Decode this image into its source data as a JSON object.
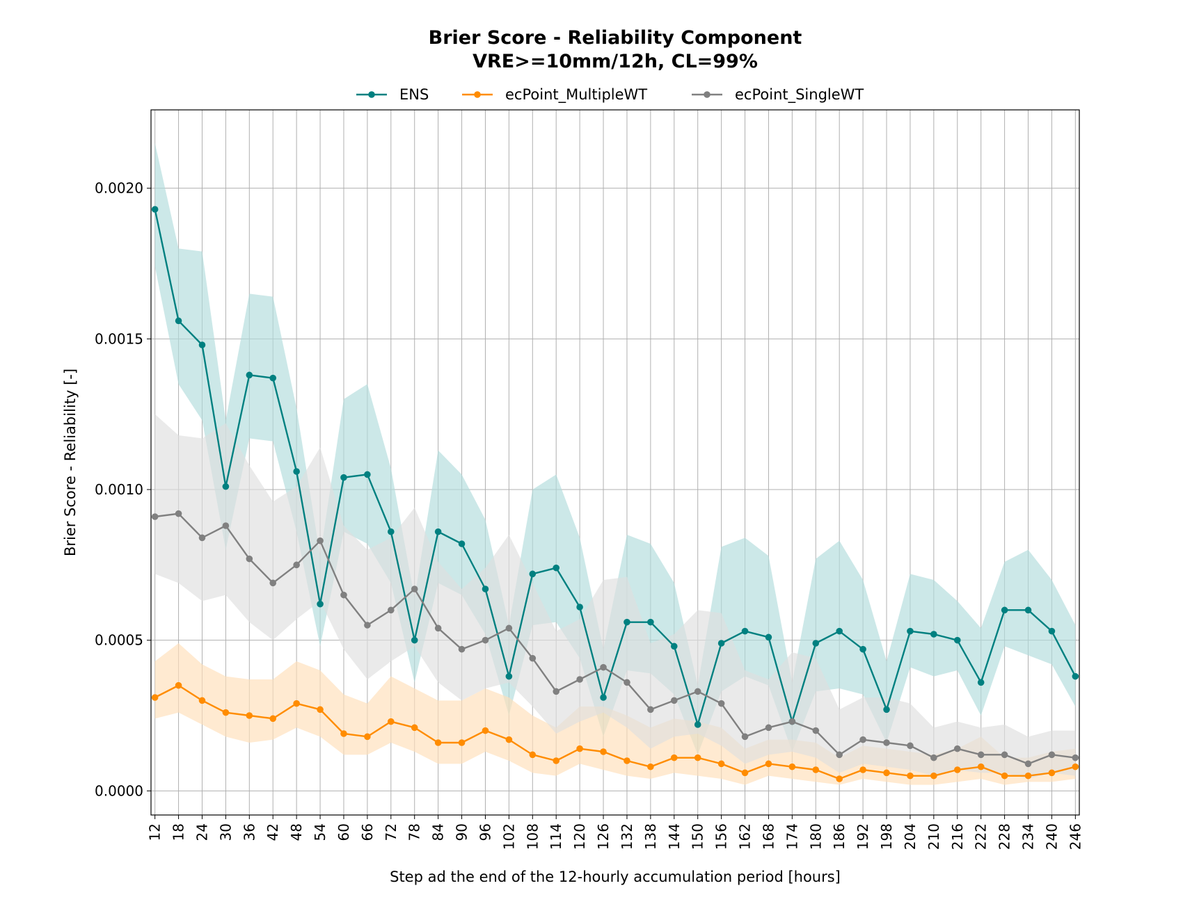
{
  "chart_data": {
    "type": "line",
    "title": "Brier Score - Reliability Component",
    "subtitle": "VRE>=10mm/12h, CL=99%",
    "xlabel": "Step ad the end of the 12-hourly accumulation period [hours]",
    "ylabel": "Brier Score - Reliability [-]",
    "ylim": [
      -8e-05,
      0.00226
    ],
    "xlim": [
      11,
      247
    ],
    "grid": true,
    "legend_position": "top-center",
    "y_ticks": [
      "0.0000",
      "0.0005",
      "0.0010",
      "0.0015",
      "0.0020"
    ],
    "x": [
      12,
      18,
      24,
      30,
      36,
      42,
      48,
      54,
      60,
      66,
      72,
      78,
      84,
      90,
      96,
      102,
      108,
      114,
      120,
      126,
      132,
      138,
      144,
      150,
      156,
      162,
      168,
      174,
      180,
      186,
      192,
      198,
      204,
      210,
      216,
      222,
      228,
      234,
      240,
      246
    ],
    "series": [
      {
        "name": "ENS",
        "color": "#008080",
        "band_color": "#b0dcdc",
        "values": [
          0.00193,
          0.00156,
          0.00148,
          0.00101,
          0.00138,
          0.00137,
          0.00106,
          0.00062,
          0.00104,
          0.00105,
          0.00086,
          0.0005,
          0.00086,
          0.00082,
          0.00067,
          0.00038,
          0.00072,
          0.00074,
          0.00061,
          0.00031,
          0.00056,
          0.00056,
          0.00048,
          0.00022,
          0.00049,
          0.00053,
          0.00051,
          0.00023,
          0.00049,
          0.00053,
          0.00047,
          0.00027,
          0.00053,
          0.00052,
          0.0005,
          0.00036,
          0.0006,
          0.0006,
          0.00053,
          0.00038
        ],
        "lower": [
          0.00174,
          0.00135,
          0.00123,
          0.0008,
          0.00117,
          0.00116,
          0.00086,
          0.00048,
          0.00086,
          0.00082,
          0.00069,
          0.00036,
          0.00069,
          0.00065,
          0.00052,
          0.00025,
          0.00055,
          0.00056,
          0.00044,
          0.00018,
          0.0004,
          0.00039,
          0.00032,
          0.00012,
          0.00033,
          0.00038,
          0.00035,
          0.00013,
          0.00033,
          0.00034,
          0.00032,
          0.00016,
          0.00041,
          0.00038,
          0.0004,
          0.00025,
          0.00048,
          0.00045,
          0.00042,
          0.00028
        ],
        "upper": [
          0.00215,
          0.0018,
          0.00179,
          0.00123,
          0.00165,
          0.00164,
          0.00127,
          0.00078,
          0.0013,
          0.00135,
          0.00107,
          0.00064,
          0.00113,
          0.00105,
          0.0009,
          0.00055,
          0.001,
          0.00105,
          0.00084,
          0.00047,
          0.00085,
          0.00082,
          0.00069,
          0.00035,
          0.00081,
          0.00084,
          0.00078,
          0.00036,
          0.00077,
          0.00083,
          0.0007,
          0.00043,
          0.00072,
          0.0007,
          0.00063,
          0.00054,
          0.00076,
          0.0008,
          0.0007,
          0.00055
        ]
      },
      {
        "name": "ecPoint_MultipleWT",
        "color": "#ff8c00",
        "band_color": "#ffdfb8",
        "values": [
          0.00031,
          0.00035,
          0.0003,
          0.00026,
          0.00025,
          0.00024,
          0.00029,
          0.00027,
          0.00019,
          0.00018,
          0.00023,
          0.00021,
          0.00016,
          0.00016,
          0.0002,
          0.00017,
          0.00012,
          0.0001,
          0.00014,
          0.00013,
          0.0001,
          8e-05,
          0.00011,
          0.00011,
          9e-05,
          6e-05,
          9e-05,
          8e-05,
          7e-05,
          4e-05,
          7e-05,
          6e-05,
          5e-05,
          5e-05,
          7e-05,
          8e-05,
          5e-05,
          5e-05,
          6e-05,
          8e-05
        ],
        "lower": [
          0.00024,
          0.00026,
          0.00022,
          0.00018,
          0.00016,
          0.00017,
          0.00021,
          0.00018,
          0.00012,
          0.00012,
          0.00016,
          0.00013,
          9e-05,
          9e-05,
          0.00013,
          0.0001,
          6e-05,
          5e-05,
          9e-05,
          7e-05,
          5e-05,
          4e-05,
          6e-05,
          5e-05,
          4e-05,
          2e-05,
          5e-05,
          4e-05,
          3e-05,
          2e-05,
          4e-05,
          3e-05,
          2e-05,
          2e-05,
          3e-05,
          4e-05,
          2e-05,
          3e-05,
          3e-05,
          4e-05
        ],
        "upper": [
          0.00043,
          0.00049,
          0.00042,
          0.00038,
          0.00037,
          0.00037,
          0.00043,
          0.0004,
          0.00032,
          0.00029,
          0.00038,
          0.00034,
          0.0003,
          0.0003,
          0.00034,
          0.00031,
          0.00025,
          0.00021,
          0.00028,
          0.00028,
          0.00025,
          0.00021,
          0.00024,
          0.00023,
          0.00021,
          0.00014,
          0.00017,
          0.00017,
          0.00016,
          0.00011,
          0.00015,
          0.00014,
          0.00013,
          0.00012,
          0.00014,
          0.00018,
          0.00011,
          0.00011,
          0.00013,
          0.00014
        ]
      },
      {
        "name": "ecPoint_SingleWT",
        "color": "#808080",
        "band_color": "#dedede",
        "values": [
          0.00091,
          0.00092,
          0.00084,
          0.00088,
          0.00077,
          0.00069,
          0.00075,
          0.00083,
          0.00065,
          0.00055,
          0.0006,
          0.00067,
          0.00054,
          0.00047,
          0.0005,
          0.00054,
          0.00044,
          0.00033,
          0.00037,
          0.00041,
          0.00036,
          0.00027,
          0.0003,
          0.00033,
          0.00029,
          0.00018,
          0.00021,
          0.00023,
          0.0002,
          0.00012,
          0.00017,
          0.00016,
          0.00015,
          0.00011,
          0.00014,
          0.00012,
          0.00012,
          9e-05,
          0.00012,
          0.00011
        ],
        "lower": [
          0.00072,
          0.00069,
          0.00063,
          0.00065,
          0.00056,
          0.0005,
          0.00057,
          0.00063,
          0.00047,
          0.00037,
          0.00043,
          0.00048,
          0.00036,
          0.0003,
          0.00034,
          0.00036,
          0.00028,
          0.00019,
          0.00023,
          0.00026,
          0.00021,
          0.00014,
          0.00018,
          0.00019,
          0.00015,
          9e-05,
          0.00012,
          0.00013,
          0.00011,
          6e-05,
          9e-05,
          8e-05,
          7e-05,
          5e-05,
          7e-05,
          6e-05,
          6e-05,
          4e-05,
          6e-05,
          5e-05
        ],
        "upper": [
          0.00125,
          0.00118,
          0.00117,
          0.00122,
          0.00108,
          0.00096,
          0.00101,
          0.00114,
          0.00088,
          0.0008,
          0.00084,
          0.00094,
          0.00076,
          0.00067,
          0.00074,
          0.00085,
          0.00069,
          0.00053,
          0.00057,
          0.0007,
          0.00071,
          0.00049,
          0.00052,
          0.0006,
          0.00059,
          0.0004,
          0.00037,
          0.00046,
          0.00044,
          0.00027,
          0.00031,
          0.00031,
          0.00029,
          0.00021,
          0.00023,
          0.00021,
          0.00022,
          0.00018,
          0.0002,
          0.0002
        ]
      }
    ]
  }
}
